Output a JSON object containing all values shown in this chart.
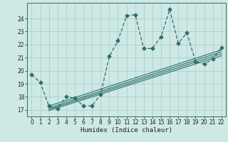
{
  "xlabel": "Humidex (Indice chaleur)",
  "bg_color": "#cde8e5",
  "grid_color": "#aecfcb",
  "line_color": "#2d7068",
  "x_main": [
    0,
    1,
    2,
    3,
    4,
    5,
    6,
    7,
    8,
    9,
    10,
    11,
    12,
    13,
    14,
    15,
    16,
    17,
    18,
    19,
    20,
    21,
    22
  ],
  "y_main": [
    19.7,
    19.1,
    17.3,
    17.1,
    18.0,
    17.9,
    17.3,
    17.3,
    18.2,
    21.1,
    22.3,
    24.2,
    24.3,
    21.7,
    21.7,
    22.6,
    24.7,
    22.1,
    22.9,
    20.7,
    20.5,
    20.9,
    21.8
  ],
  "reg_lines": [
    {
      "x": [
        2,
        22
      ],
      "y": [
        17.3,
        21.6
      ]
    },
    {
      "x": [
        2,
        22
      ],
      "y": [
        17.15,
        21.45
      ]
    },
    {
      "x": [
        2,
        22
      ],
      "y": [
        17.05,
        21.3
      ]
    },
    {
      "x": [
        2,
        22
      ],
      "y": [
        16.95,
        21.15
      ]
    }
  ],
  "ylim": [
    16.5,
    25.2
  ],
  "xlim": [
    -0.5,
    22.5
  ],
  "yticks": [
    17,
    18,
    19,
    20,
    21,
    22,
    23,
    24
  ],
  "xticks": [
    0,
    1,
    2,
    3,
    4,
    5,
    6,
    7,
    8,
    9,
    10,
    11,
    12,
    13,
    14,
    15,
    16,
    17,
    18,
    19,
    20,
    21,
    22
  ]
}
